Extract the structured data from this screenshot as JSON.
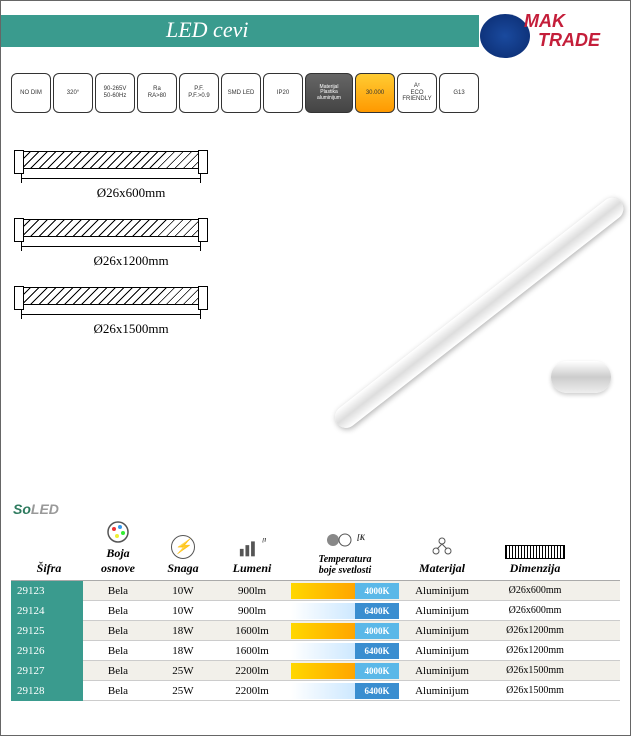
{
  "header": {
    "title": "LED cevi"
  },
  "logo": {
    "line1": "MAK",
    "line2": "TRADE"
  },
  "specs": [
    {
      "label": "NO DIM"
    },
    {
      "label": "320°"
    },
    {
      "label": "90-265V\n50-60Hz"
    },
    {
      "label": "Ra\nRA>80"
    },
    {
      "label": "P.F.\nP.F.>0.9"
    },
    {
      "label": "SMD LED"
    },
    {
      "label": "IP20"
    },
    {
      "label": "Materijal\nPlastika\naluminijum",
      "cls": "material"
    },
    {
      "label": "30.000",
      "cls": "yellow"
    },
    {
      "label": "Aᶜ\nECO\nFRIENDLY"
    },
    {
      "label": "G13"
    }
  ],
  "diagrams": [
    {
      "label": "Ø26x600mm"
    },
    {
      "label": "Ø26x1200mm"
    },
    {
      "label": "Ø26x1500mm"
    }
  ],
  "brand": {
    "part1": "So",
    "part2": "LED"
  },
  "columns": {
    "sifra": "Šifra",
    "boja": "Boja\nosnove",
    "snaga": "Snaga",
    "lumeni": "Lumeni",
    "temp": "Temperatura\nboje svetlosti",
    "temp_unit": "[K]",
    "lum_unit": "[Lm]",
    "materijal": "Materijal",
    "dimenzija": "Dimenzija"
  },
  "rows": [
    {
      "sifra": "29123",
      "boja": "Bela",
      "snaga": "10W",
      "lumeni": "900lm",
      "tempK": "4000K",
      "tclass": "4000",
      "mat": "Aluminijum",
      "dim": "Ø26x600mm"
    },
    {
      "sifra": "29124",
      "boja": "Bela",
      "snaga": "10W",
      "lumeni": "900lm",
      "tempK": "6400K",
      "tclass": "6400",
      "mat": "Aluminijum",
      "dim": "Ø26x600mm"
    },
    {
      "sifra": "29125",
      "boja": "Bela",
      "snaga": "18W",
      "lumeni": "1600lm",
      "tempK": "4000K",
      "tclass": "4000",
      "mat": "Aluminijum",
      "dim": "Ø26x1200mm"
    },
    {
      "sifra": "29126",
      "boja": "Bela",
      "snaga": "18W",
      "lumeni": "1600lm",
      "tempK": "6400K",
      "tclass": "6400",
      "mat": "Aluminijum",
      "dim": "Ø26x1200mm"
    },
    {
      "sifra": "29127",
      "boja": "Bela",
      "snaga": "25W",
      "lumeni": "2200lm",
      "tempK": "4000K",
      "tclass": "4000",
      "mat": "Aluminijum",
      "dim": "Ø26x1500mm"
    },
    {
      "sifra": "29128",
      "boja": "Bela",
      "snaga": "25W",
      "lumeni": "2200lm",
      "tempK": "6400K",
      "tclass": "6400",
      "mat": "Aluminijum",
      "dim": "Ø26x1500mm"
    }
  ]
}
